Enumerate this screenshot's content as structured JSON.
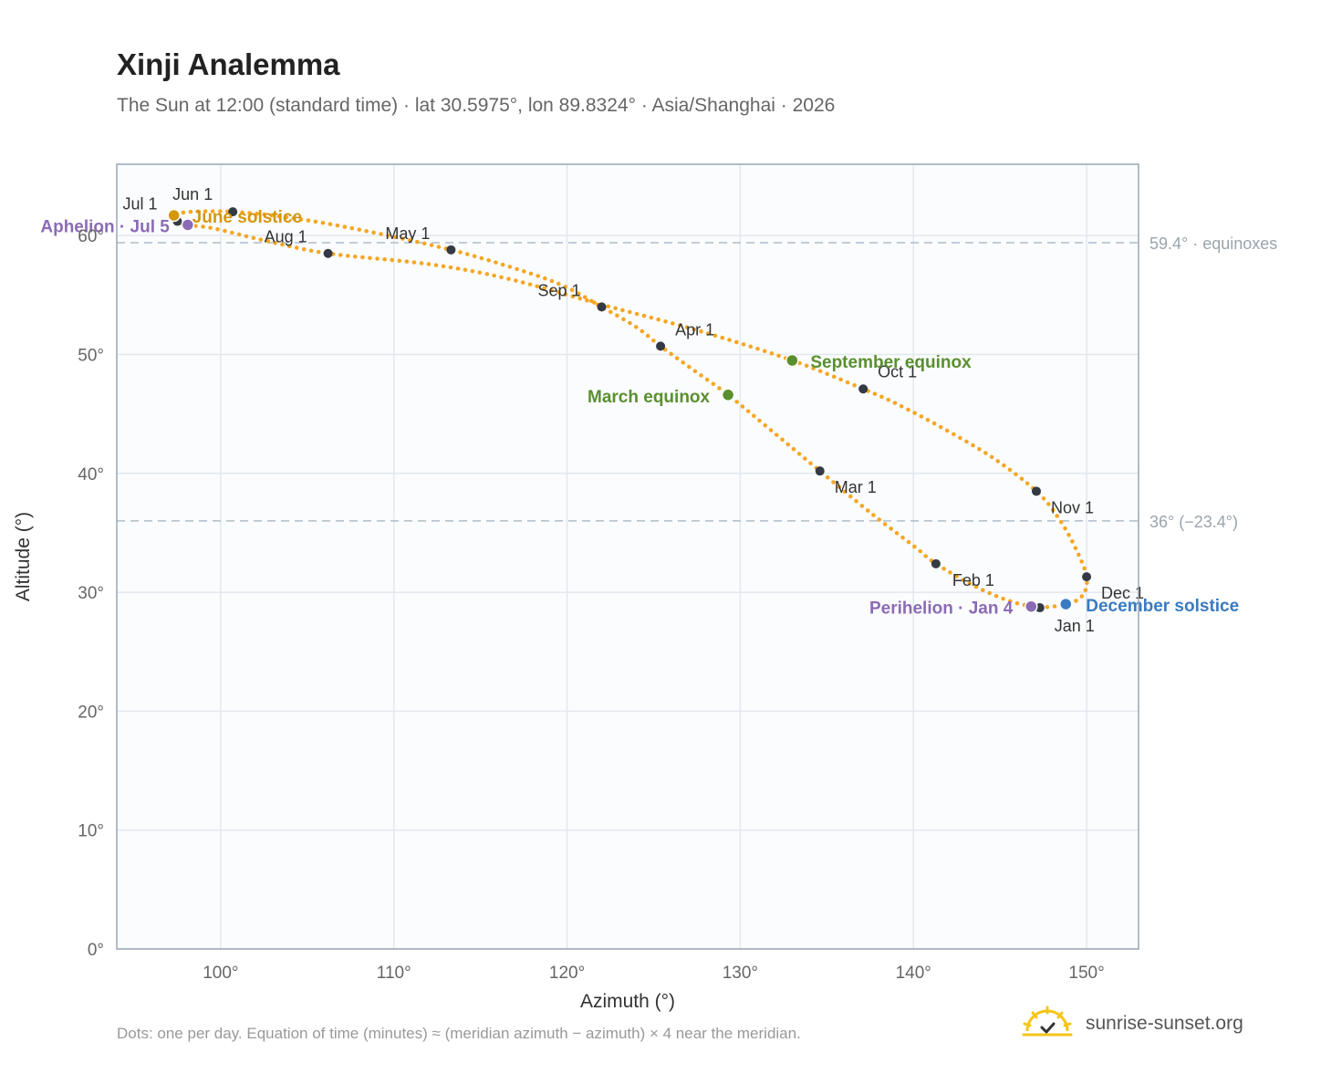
{
  "header": {
    "title": "Xinji Analemma",
    "subtitle": "The Sun at 12:00 (standard time) · lat 30.5975°, lon 89.8324° · Asia/Shanghai · 2026"
  },
  "footer": {
    "note": "Dots: one per day. Equation of time (minutes) ≈ (meridian azimuth − azimuth) × 4 near the meridian.",
    "brand": "sunrise-sunset.org"
  },
  "colors": {
    "curve": "#f5a623",
    "month_dot": "#333a44",
    "solstice_june": "#d4960f",
    "solstice_december": "#3a7bbf",
    "equinox": "#5a8f2e",
    "apsis": "#8c6bb5",
    "grid": "#e3e8ee",
    "plot_bg": "#fafcfe",
    "reference": "#b0bcc8"
  },
  "chart_data": {
    "type": "scatter",
    "xlabel": "Azimuth (°)",
    "ylabel": "Altitude (°)",
    "xlim": [
      94,
      153
    ],
    "ylim": [
      0,
      66
    ],
    "x_ticks": [
      "100°",
      "110°",
      "120°",
      "130°",
      "140°",
      "150°"
    ],
    "x_tick_values": [
      100,
      110,
      120,
      130,
      140,
      150
    ],
    "y_ticks": [
      "0°",
      "10°",
      "20°",
      "30°",
      "40°",
      "50°",
      "60°"
    ],
    "y_tick_values": [
      0,
      10,
      20,
      30,
      40,
      50,
      60
    ],
    "grid": true,
    "reference_lines": [
      {
        "altitude": 59.4,
        "label": "59.4° · equinoxes"
      },
      {
        "altitude": 36.0,
        "label": "36° (−23.4°)"
      }
    ],
    "analemma_path": [
      [
        147.3,
        28.7
      ],
      [
        148.9,
        29.0
      ],
      [
        149.8,
        29.8
      ],
      [
        150.0,
        31.3
      ],
      [
        149.4,
        33.6
      ],
      [
        148.4,
        36.2
      ],
      [
        147.1,
        38.5
      ],
      [
        144.6,
        41.3
      ],
      [
        141.7,
        43.8
      ],
      [
        139.1,
        45.8
      ],
      [
        137.1,
        47.1
      ],
      [
        133.0,
        49.5
      ],
      [
        127.6,
        52.0
      ],
      [
        122.0,
        54.2
      ],
      [
        116.5,
        56.4
      ],
      [
        112.0,
        57.6
      ],
      [
        106.2,
        58.5
      ],
      [
        102.5,
        59.6
      ],
      [
        99.6,
        60.6
      ],
      [
        98.1,
        60.9
      ],
      [
        97.5,
        61.2
      ],
      [
        97.3,
        61.7
      ],
      [
        98.3,
        62.0
      ],
      [
        100.7,
        62.0
      ],
      [
        104.0,
        61.5
      ],
      [
        108.0,
        60.5
      ],
      [
        113.3,
        58.8
      ],
      [
        117.5,
        57.0
      ],
      [
        119.9,
        55.7
      ],
      [
        122.0,
        54.0
      ],
      [
        124.0,
        52.3
      ],
      [
        125.4,
        50.7
      ],
      [
        127.2,
        48.8
      ],
      [
        129.3,
        46.6
      ],
      [
        131.8,
        43.6
      ],
      [
        134.6,
        40.2
      ],
      [
        137.6,
        36.6
      ],
      [
        140.1,
        33.8
      ],
      [
        141.3,
        32.4
      ],
      [
        143.7,
        30.4
      ],
      [
        145.7,
        29.2
      ],
      [
        147.3,
        28.7
      ]
    ],
    "month_markers": [
      {
        "label": "Jan 1",
        "az": 147.3,
        "alt": 28.7,
        "label_dx": 16,
        "label_dy": 26
      },
      {
        "label": "Feb 1",
        "az": 141.3,
        "alt": 32.4,
        "label_dx": 18,
        "label_dy": 24
      },
      {
        "label": "Mar 1",
        "az": 134.6,
        "alt": 40.2,
        "label_dx": 16,
        "label_dy": 24
      },
      {
        "label": "Apr 1",
        "az": 125.4,
        "alt": 50.7,
        "label_dx": 16,
        "label_dy": -12
      },
      {
        "label": "May 1",
        "az": 113.3,
        "alt": 58.8,
        "label_dx": -72,
        "label_dy": -12
      },
      {
        "label": "Jun 1",
        "az": 100.7,
        "alt": 62.0,
        "label_dx": -66,
        "label_dy": -13
      },
      {
        "label": "Jul 1",
        "az": 97.5,
        "alt": 61.2,
        "label_dx": -60,
        "label_dy": -13
      },
      {
        "label": "Aug 1",
        "az": 106.2,
        "alt": 58.5,
        "label_dx": -70,
        "label_dy": -12
      },
      {
        "label": "Sep 1",
        "az": 122.0,
        "alt": 54.0,
        "label_dx": -70,
        "label_dy": -12
      },
      {
        "label": "Oct 1",
        "az": 137.1,
        "alt": 47.1,
        "label_dx": 16,
        "label_dy": -13
      },
      {
        "label": "Nov 1",
        "az": 147.1,
        "alt": 38.5,
        "label_dx": 16,
        "label_dy": 24
      },
      {
        "label": "Dec 1",
        "az": 150.0,
        "alt": 31.3,
        "label_dx": 16,
        "label_dy": 24
      }
    ],
    "key_events": [
      {
        "label": "June solstice",
        "az": 97.3,
        "alt": 61.7,
        "color_key": "solstice_june",
        "side": "right",
        "label_dx": 20,
        "label_dy": 8
      },
      {
        "label": "December solstice",
        "az": 148.8,
        "alt": 29.0,
        "color_key": "solstice_december",
        "side": "right",
        "label_dx": 22,
        "label_dy": 8
      },
      {
        "label": "March equinox",
        "az": 129.3,
        "alt": 46.6,
        "color_key": "equinox",
        "side": "left",
        "label_dx": -20,
        "label_dy": 8
      },
      {
        "label": "September equinox",
        "az": 133.0,
        "alt": 49.5,
        "color_key": "equinox",
        "side": "right",
        "label_dx": 20,
        "label_dy": 8
      },
      {
        "label": "Aphelion · Jul 5",
        "az": 98.1,
        "alt": 60.9,
        "color_key": "apsis",
        "side": "left",
        "label_dx": -20,
        "label_dy": 8
      },
      {
        "label": "Perihelion · Jan 4",
        "az": 146.8,
        "alt": 28.8,
        "color_key": "apsis",
        "side": "left",
        "label_dx": -20,
        "label_dy": 8
      }
    ]
  }
}
